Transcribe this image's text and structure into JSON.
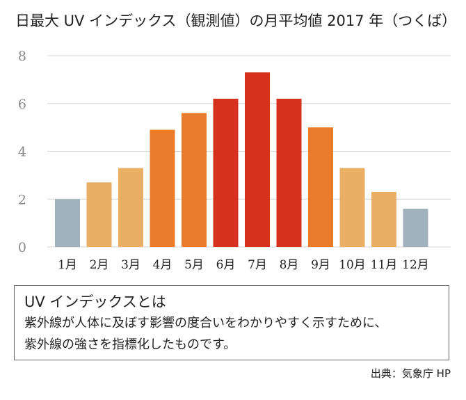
{
  "chart_data": {
    "type": "bar",
    "title": "日最大 UV インデックス（観測値）の月平均値 2017 年（つくば）",
    "categories": [
      "1月",
      "2月",
      "3月",
      "4月",
      "5月",
      "6月",
      "7月",
      "8月",
      "9月",
      "10月",
      "11月",
      "12月"
    ],
    "values": [
      2.0,
      2.7,
      3.3,
      4.9,
      5.6,
      6.2,
      7.3,
      6.2,
      5.0,
      3.3,
      2.3,
      1.6
    ],
    "colors": [
      "#9fb2be",
      "#e9b065",
      "#e9b065",
      "#ea7b2b",
      "#ea7b2b",
      "#d6311c",
      "#d6311c",
      "#d6311c",
      "#ea7b2b",
      "#e9b065",
      "#e9b065",
      "#9fb2be"
    ],
    "ylim": [
      0,
      8
    ],
    "yticks": [
      "0",
      "2",
      "4",
      "6",
      "8"
    ],
    "ytick_values": [
      0,
      2,
      4,
      6,
      8
    ],
    "xlabel": "",
    "ylabel": "",
    "grid": true,
    "grid_color": "#d5d5d5"
  },
  "info_box": {
    "heading": "UV インデックスとは",
    "line1": "紫外線が人体に及ぼす影響の度合いをわかりやすく示すために、",
    "line2": "紫外線の強さを指標化したものです。"
  },
  "source": "出典：気象庁 HP"
}
